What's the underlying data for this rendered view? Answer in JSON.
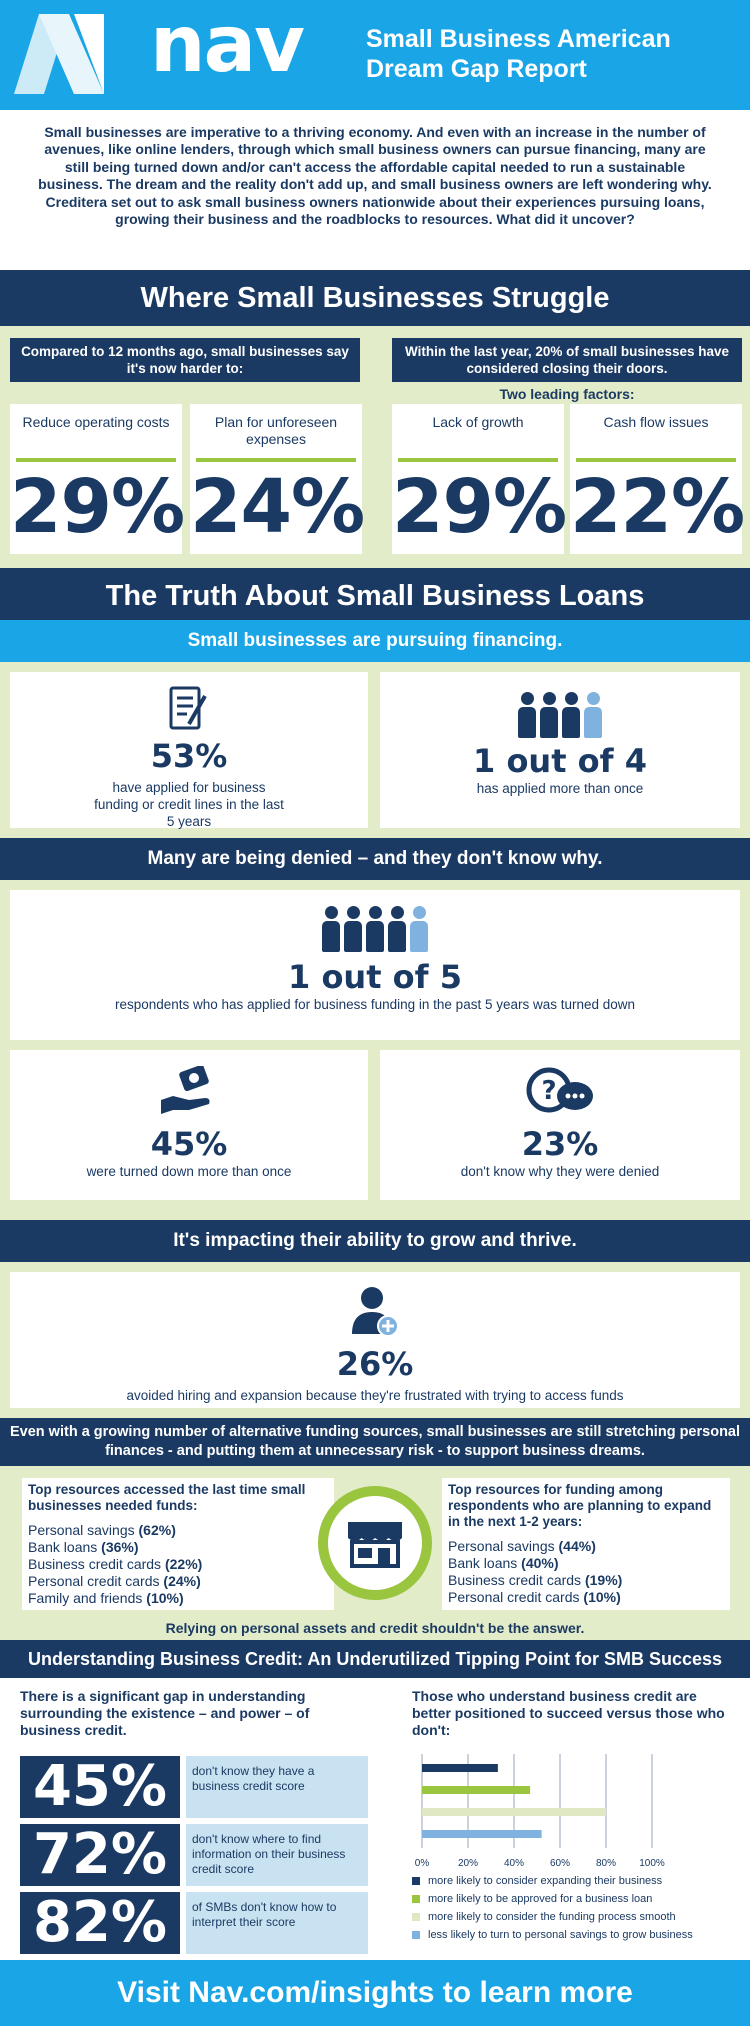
{
  "header": {
    "wordmark": "nav",
    "title": "Small Business American Dream Gap Report"
  },
  "intro": "Small businesses are imperative to a thriving economy. And even with an increase in the number of avenues, like online lenders, through which small business owners can pursue financing, many are still being turned down and/or can't access the affordable capital needed to run a sustainable business. The dream and the reality don't add up, and small business owners are left wondering why.  Creditera set out to ask small business owners nationwide about their experiences pursuing loans, growing their business and the roadblocks to resources. What did it uncover?",
  "struggle": {
    "heading": "Where Small Businesses Struggle",
    "left_label": "Compared to 12 months ago, small businesses say it's now harder to:",
    "right_label": "Within the last year, 20% of small businesses have considered closing their doors.",
    "factors_label": "Two leading factors:",
    "stats": [
      {
        "caption": "Reduce operating costs",
        "value": "29%"
      },
      {
        "caption": "Plan for unforeseen expenses",
        "value": "24%"
      },
      {
        "caption": "Lack of growth",
        "value": "29%"
      },
      {
        "caption": "Cash flow issues",
        "value": "22%"
      }
    ]
  },
  "loans": {
    "heading": "The Truth About Small Business Loans",
    "pursuing_heading": "Small businesses are pursuing financing.",
    "applied_pct": "53%",
    "applied_desc": "have applied for business funding or credit lines in the last 5 years",
    "more_than_once_value": "1 out of 4",
    "more_than_once_desc": "has applied more than once",
    "denied_heading": "Many are being denied – and they don't know why.",
    "turned_down_value": "1 out of 5",
    "turned_down_desc": "respondents who has applied for business funding in the past 5 years was turned down",
    "repeat_denied_pct": "45%",
    "repeat_denied_desc": "were turned down more than once",
    "dont_know_pct": "23%",
    "dont_know_desc": "don't know why they were denied",
    "impact_heading": "It's impacting their ability to grow and thrive.",
    "avoided_pct": "26%",
    "avoided_desc": "avoided hiring and expansion because they're frustrated with trying to access funds"
  },
  "resources": {
    "banner": "Even with a growing number of alternative funding sources, small businesses are still stretching personal finances - and putting them at unnecessary risk - to support business dreams.",
    "left_heading": "Top resources accessed the last time small businesses needed funds:",
    "left_items": [
      {
        "label": "Personal savings",
        "value": "(62%)"
      },
      {
        "label": "Bank loans",
        "value": "(36%)"
      },
      {
        "label": "Business credit cards",
        "value": "(22%)"
      },
      {
        "label": "Personal credit cards",
        "value": "(24%)"
      },
      {
        "label": "Family and friends",
        "value": "(10%)"
      }
    ],
    "right_heading": "Top resources for funding among respondents who are planning to expand in the next 1-2 years:",
    "right_items": [
      {
        "label": "Personal savings",
        "value": "(44%)"
      },
      {
        "label": "Bank loans",
        "value": "(40%)"
      },
      {
        "label": "Business credit cards",
        "value": "(19%)"
      },
      {
        "label": "Personal credit cards",
        "value": "(10%)"
      }
    ],
    "note": "Relying on personal assets and credit shouldn't be the answer."
  },
  "credit": {
    "heading": "Understanding Business Credit: An Underutilized Tipping Point for SMB Success",
    "left_intro": "There is a significant gap in understanding surrounding the existence – and power – of business credit.",
    "stats": [
      {
        "value": "45%",
        "desc": "don't know they have a business credit score"
      },
      {
        "value": "72%",
        "desc": "don't know where to find information on their business credit score"
      },
      {
        "value": "82%",
        "desc": "of SMBs don't know how to interpret their score"
      }
    ],
    "right_intro": "Those who understand business credit are better positioned to succeed versus those who don't:"
  },
  "chart_data": {
    "type": "bar",
    "orientation": "horizontal",
    "x_ticks": [
      "0%",
      "20%",
      "40%",
      "60%",
      "80%",
      "100%"
    ],
    "xlim": [
      0,
      100
    ],
    "grid": true,
    "legend_placement": "bottom",
    "series": [
      {
        "name": "more likely to consider expanding their business",
        "value": 33,
        "color": "#1b3a63"
      },
      {
        "name": "more likely to be approved for a business loan",
        "value": 47,
        "color": "#9ac53f"
      },
      {
        "name": "more likely to consider the funding process smooth",
        "value": 80,
        "color": "#dfe8c2"
      },
      {
        "name": "less likely to turn to personal savings to grow business",
        "value": 52,
        "color": "#7fb2de"
      }
    ]
  },
  "footer": "Visit Nav.com/insights to learn more",
  "colors": {
    "navy": "#1b3a63",
    "sky": "#1aa6e6",
    "green": "#9ac53f",
    "pale_green": "#e3ecc8",
    "light_blue": "#7fb2de"
  }
}
